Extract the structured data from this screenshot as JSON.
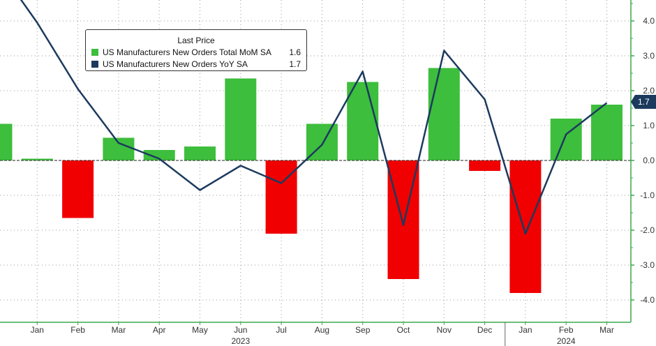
{
  "chart_data": {
    "type": "bar",
    "legend_title": "Last Price",
    "legend_position": "top-left",
    "grid": true,
    "categories": [
      "Dec",
      "Jan",
      "Feb",
      "Mar",
      "Apr",
      "May",
      "Jun",
      "Jul",
      "Aug",
      "Sep",
      "Oct",
      "Nov",
      "Dec",
      "Jan",
      "Feb",
      "Mar"
    ],
    "x_tick_labels": [
      "Jan",
      "Feb",
      "Mar",
      "Apr",
      "May",
      "Jun",
      "Jul",
      "Aug",
      "Sep",
      "Oct",
      "Nov",
      "Dec",
      "Jan",
      "Feb",
      "Mar"
    ],
    "year_labels": [
      "2023",
      "2024"
    ],
    "series": [
      {
        "name": "US Manufacturers New Orders Total MoM SA",
        "type": "bar",
        "last_value": "1.6",
        "values": [
          1.05,
          0.05,
          -1.65,
          0.65,
          0.3,
          0.4,
          2.35,
          -2.1,
          1.05,
          2.25,
          -3.4,
          2.65,
          -0.3,
          -3.8,
          1.2,
          1.6
        ]
      },
      {
        "name": "US Manufacturers New Orders YoY SA",
        "type": "line",
        "last_value": "1.7",
        "values": [
          5.6,
          3.95,
          2.05,
          0.5,
          0.05,
          -0.85,
          -0.15,
          -0.65,
          0.45,
          2.55,
          -1.85,
          3.15,
          1.75,
          -2.1,
          0.75,
          1.65
        ]
      }
    ],
    "ylim": [
      -4.6,
      4.6
    ],
    "y_ticks": [
      -4.0,
      -3.0,
      -2.0,
      -1.0,
      0.0,
      1.0,
      2.0,
      3.0,
      4.0
    ],
    "y_tick_labels": [
      "-4.0",
      "-3.0",
      "-2.0",
      "-1.0",
      "0.0",
      "1.0",
      "2.0",
      "3.0",
      "4.0"
    ],
    "last_value_badge": "1.7",
    "colors": {
      "positive_bar": "#3dbe3d",
      "negative_bar": "#f00000",
      "line": "#1c3a5e",
      "axis": "#3aa84a",
      "grid": "#9a9a9a"
    }
  }
}
